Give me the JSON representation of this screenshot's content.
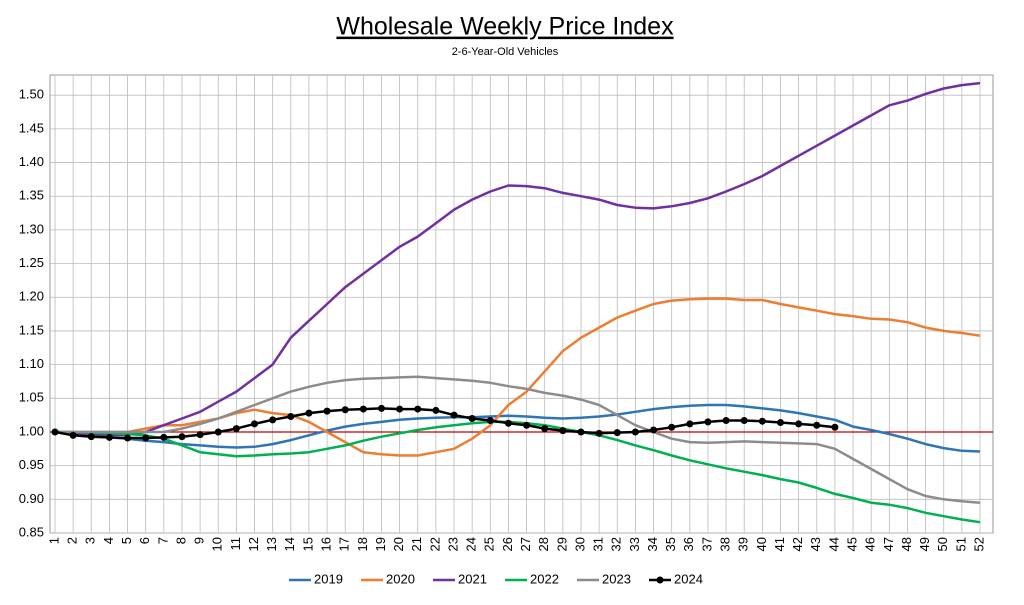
{
  "chart_data": {
    "type": "line",
    "title": "Wholesale Weekly Price Index",
    "subtitle": "2-6-Year-Old Vehicles",
    "categories": [
      "1",
      "2",
      "3",
      "4",
      "5",
      "6",
      "7",
      "8",
      "9",
      "10",
      "11",
      "12",
      "13",
      "14",
      "15",
      "16",
      "17",
      "18",
      "19",
      "20",
      "21",
      "22",
      "23",
      "24",
      "25",
      "26",
      "27",
      "28",
      "29",
      "30",
      "31",
      "32",
      "33",
      "34",
      "35",
      "36",
      "37",
      "38",
      "39",
      "40",
      "41",
      "42",
      "43",
      "44",
      "45",
      "46",
      "47",
      "48",
      "49",
      "50",
      "51",
      "52"
    ],
    "series": [
      {
        "name": "2019",
        "color": "#2e75b6",
        "values": [
          1.0,
          0.998,
          0.995,
          0.992,
          0.99,
          0.987,
          0.985,
          0.982,
          0.98,
          0.978,
          0.977,
          0.978,
          0.982,
          0.988,
          0.995,
          1.002,
          1.008,
          1.012,
          1.015,
          1.018,
          1.02,
          1.021,
          1.022,
          1.022,
          1.023,
          1.024,
          1.023,
          1.021,
          1.02,
          1.021,
          1.023,
          1.026,
          1.03,
          1.034,
          1.037,
          1.039,
          1.04,
          1.04,
          1.038,
          1.035,
          1.032,
          1.028,
          1.023,
          1.018,
          1.008,
          1.003,
          0.997,
          0.99,
          0.982,
          0.976,
          0.972,
          0.971
        ]
      },
      {
        "name": "2020",
        "color": "#ed7d31",
        "values": [
          1.0,
          1.0,
          1.0,
          1.0,
          1.0,
          1.005,
          1.01,
          1.01,
          1.015,
          1.02,
          1.028,
          1.033,
          1.028,
          1.025,
          1.015,
          1.0,
          0.985,
          0.97,
          0.967,
          0.965,
          0.965,
          0.97,
          0.975,
          0.99,
          1.01,
          1.04,
          1.06,
          1.09,
          1.12,
          1.14,
          1.155,
          1.17,
          1.18,
          1.19,
          1.195,
          1.197,
          1.198,
          1.198,
          1.196,
          1.196,
          1.19,
          1.185,
          1.18,
          1.175,
          1.172,
          1.168,
          1.167,
          1.163,
          1.155,
          1.15,
          1.147,
          1.143
        ]
      },
      {
        "name": "2021",
        "color": "#7030a0",
        "values": [
          1.0,
          0.998,
          0.997,
          0.996,
          0.996,
          1.0,
          1.01,
          1.02,
          1.03,
          1.045,
          1.06,
          1.08,
          1.1,
          1.14,
          1.165,
          1.19,
          1.215,
          1.235,
          1.255,
          1.275,
          1.29,
          1.31,
          1.33,
          1.345,
          1.357,
          1.366,
          1.365,
          1.362,
          1.355,
          1.35,
          1.345,
          1.337,
          1.333,
          1.332,
          1.335,
          1.34,
          1.347,
          1.357,
          1.368,
          1.38,
          1.395,
          1.41,
          1.425,
          1.44,
          1.455,
          1.47,
          1.485,
          1.492,
          1.502,
          1.51,
          1.515,
          1.518
        ]
      },
      {
        "name": "2022",
        "color": "#00b050",
        "values": [
          1.0,
          1.0,
          0.999,
          0.998,
          0.997,
          0.995,
          0.99,
          0.98,
          0.97,
          0.967,
          0.964,
          0.965,
          0.967,
          0.968,
          0.97,
          0.975,
          0.98,
          0.987,
          0.993,
          0.998,
          1.003,
          1.007,
          1.01,
          1.013,
          1.015,
          1.015,
          1.013,
          1.01,
          1.005,
          1.0,
          0.995,
          0.988,
          0.98,
          0.973,
          0.965,
          0.958,
          0.952,
          0.946,
          0.941,
          0.936,
          0.93,
          0.925,
          0.917,
          0.908,
          0.902,
          0.895,
          0.892,
          0.887,
          0.88,
          0.875,
          0.87,
          0.866
        ]
      },
      {
        "name": "2023",
        "color": "#8c8c8c",
        "values": [
          1.0,
          1.0,
          1.0,
          1.0,
          1.0,
          1.0,
          1.0,
          1.005,
          1.012,
          1.02,
          1.03,
          1.04,
          1.05,
          1.06,
          1.067,
          1.073,
          1.077,
          1.079,
          1.08,
          1.081,
          1.082,
          1.08,
          1.078,
          1.076,
          1.073,
          1.068,
          1.064,
          1.058,
          1.054,
          1.048,
          1.04,
          1.025,
          1.01,
          1.0,
          0.99,
          0.985,
          0.984,
          0.985,
          0.986,
          0.985,
          0.984,
          0.983,
          0.982,
          0.975,
          0.96,
          0.945,
          0.93,
          0.915,
          0.905,
          0.9,
          0.897,
          0.895
        ]
      },
      {
        "name": "2024",
        "color": "#000000",
        "marker": true,
        "values": [
          1.0,
          0.995,
          0.993,
          0.992,
          0.991,
          0.991,
          0.992,
          0.993,
          0.996,
          1.0,
          1.005,
          1.012,
          1.018,
          1.023,
          1.028,
          1.031,
          1.033,
          1.034,
          1.035,
          1.034,
          1.034,
          1.032,
          1.025,
          1.02,
          1.017,
          1.013,
          1.01,
          1.005,
          1.002,
          1.0,
          0.998,
          0.999,
          1.0,
          1.003,
          1.007,
          1.012,
          1.015,
          1.017,
          1.017,
          1.016,
          1.014,
          1.012,
          1.01,
          1.007,
          null,
          null,
          null,
          null,
          null,
          null,
          null,
          null
        ]
      }
    ],
    "ylim": [
      0.85,
      1.53
    ],
    "yticks": [
      0.85,
      {
        "value": 0.9,
        "label": "0.90"
      },
      0.95,
      {
        "value": 1.0,
        "label": "1.00"
      },
      1.05,
      {
        "value": 1.1,
        "label": "1.10"
      },
      1.15,
      {
        "value": 1.2,
        "label": "1.20"
      },
      1.25,
      {
        "value": 1.3,
        "label": "1.30"
      },
      1.35,
      {
        "value": 1.4,
        "label": "1.40"
      },
      1.45,
      {
        "value": 1.5,
        "label": "1.50"
      }
    ],
    "reference_line": {
      "value": 1.0,
      "color": "#c00000"
    },
    "grid": true,
    "legend": "bottom"
  }
}
